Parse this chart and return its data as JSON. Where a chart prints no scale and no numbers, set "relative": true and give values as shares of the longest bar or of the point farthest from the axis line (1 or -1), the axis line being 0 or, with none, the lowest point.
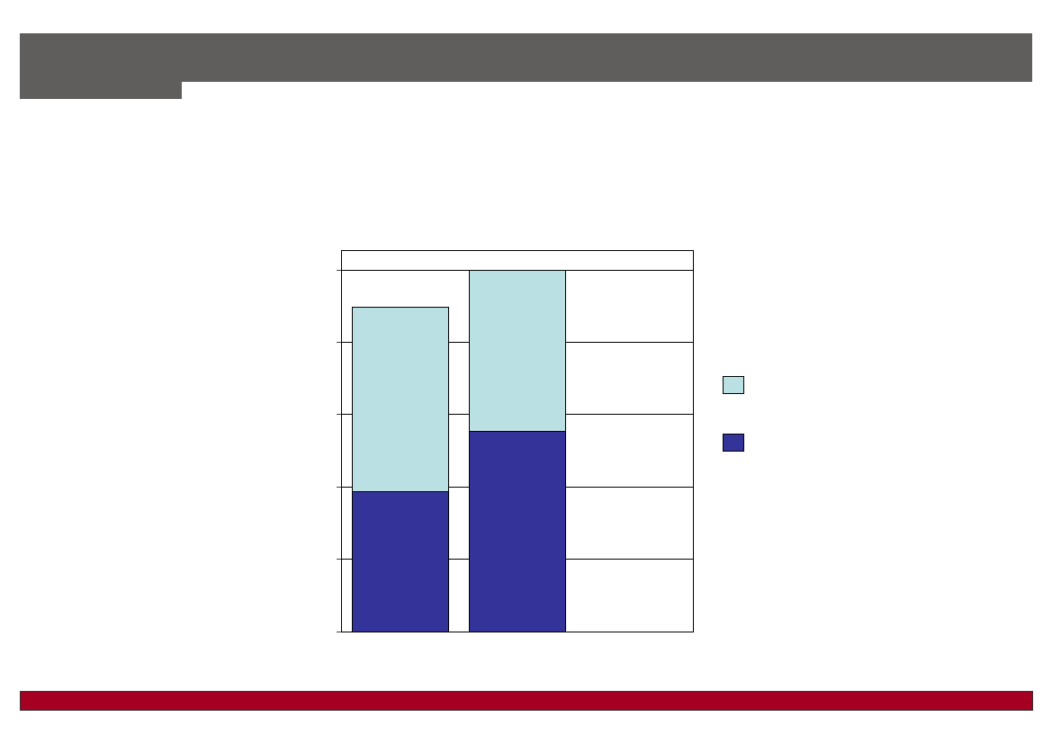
{
  "chart_data": {
    "type": "bar",
    "stacked": true,
    "relative": true,
    "categories": [
      null,
      null
    ],
    "series": [
      {
        "color": "#333399",
        "values": [
          0.387,
          0.554
        ]
      },
      {
        "color": "#bbe0e3",
        "values": [
          0.509,
          0.446
        ]
      }
    ],
    "grid": "y"
  }
}
